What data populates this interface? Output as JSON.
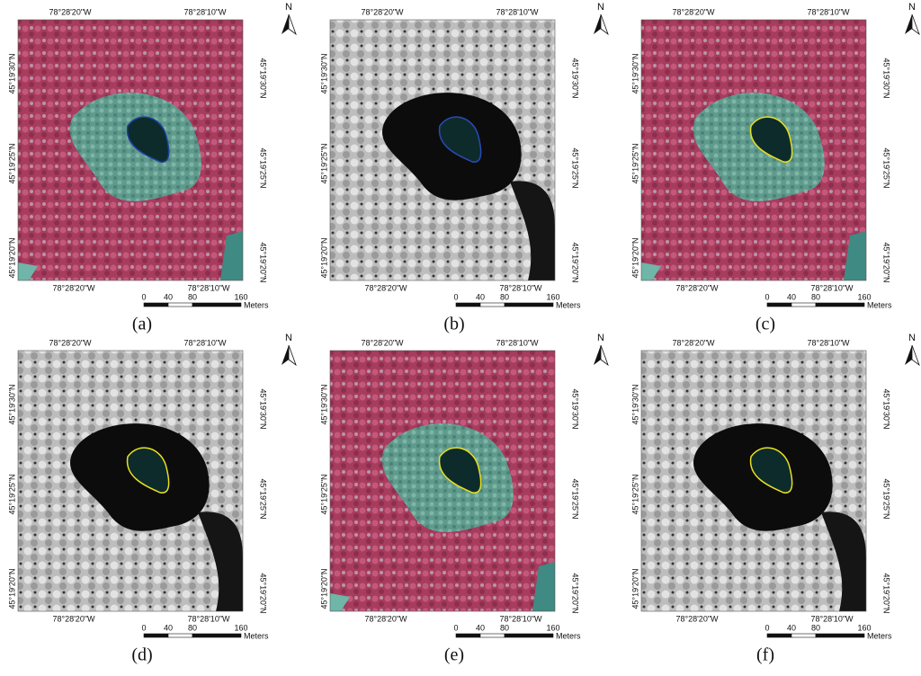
{
  "panels": [
    {
      "caption": "(a)",
      "imagery": "infrared",
      "outline_color": "#1f3fa0"
    },
    {
      "caption": "(b)",
      "imagery": "grayscale",
      "outline_color": "#2a4ab8"
    },
    {
      "caption": "(c)",
      "imagery": "infrared",
      "outline_color": "#e8e020"
    },
    {
      "caption": "(d)",
      "imagery": "grayscale",
      "outline_color": "#e8e020"
    },
    {
      "caption": "(e)",
      "imagery": "infrared",
      "outline_color": "#e8e020"
    },
    {
      "caption": "(f)",
      "imagery": "grayscale",
      "outline_color": "#e8e020"
    }
  ],
  "longitude_labels": [
    "78°28'20\"W",
    "78°28'10\"W"
  ],
  "latitude_labels": [
    "45°19'30\"N",
    "45°19'25\"N",
    "45°19'20\"N"
  ],
  "north": "N",
  "scale_bar": {
    "ticks": [
      0,
      40,
      80,
      160
    ],
    "unit": "Meters"
  }
}
